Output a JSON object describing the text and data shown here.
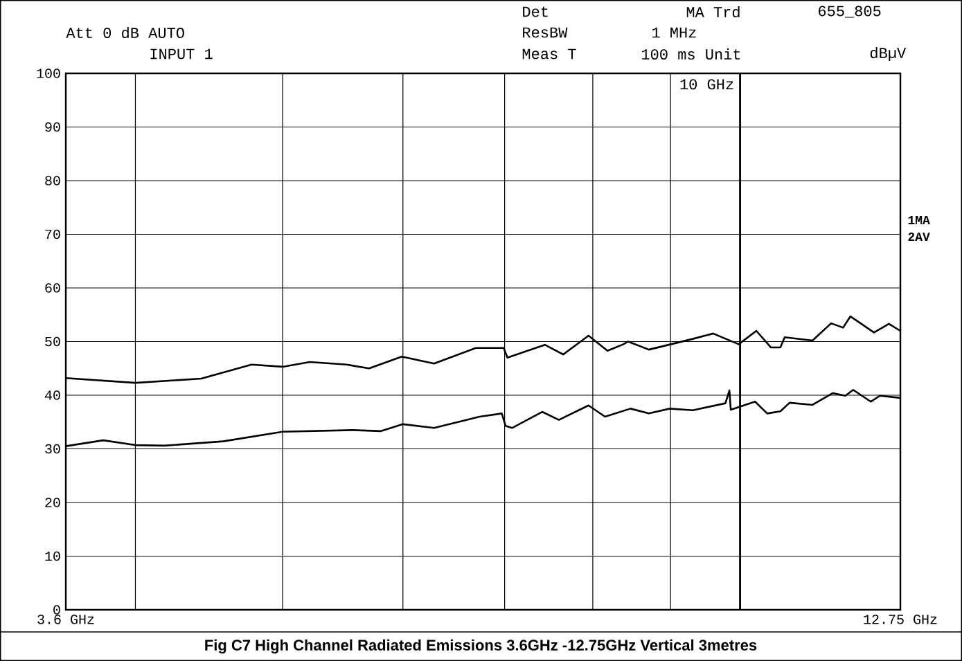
{
  "chart_data": {
    "type": "line",
    "title": "Fig C7 High Channel Radiated Emissions 3.6GHz -12.75GHz  Vertical 3metres",
    "annotations": [
      "Att 0 dB AUTO",
      "INPUT 1",
      "Det",
      "MA Trd",
      "655_805",
      "ResBW",
      "1 MHz",
      "Meas T",
      "100 ms Unit",
      "dBµV"
    ],
    "log": "x",
    "grid": true,
    "xlim": [
      3.6,
      12.75
    ],
    "ylim": [
      0,
      100
    ],
    "xticks": [
      {
        "value": 3.6,
        "label": "3.6 GHz"
      },
      {
        "value": 4,
        "label": null
      },
      {
        "value": 5,
        "label": null
      },
      {
        "value": 6,
        "label": null
      },
      {
        "value": 7,
        "label": null
      },
      {
        "value": 8,
        "label": null
      },
      {
        "value": 9,
        "label": null
      },
      {
        "value": 10,
        "label": null
      },
      {
        "value": 12.75,
        "label": "12.75 GHz"
      }
    ],
    "yticks": [
      0,
      10,
      20,
      30,
      40,
      50,
      60,
      70,
      80,
      90,
      100
    ],
    "ref_lines": [
      {
        "axis": "x",
        "value": 10,
        "label": "10 GHz",
        "color": "#000000"
      }
    ],
    "series": [
      {
        "name": "1MA",
        "color": "#000000",
        "x": [
          3.6,
          4.0,
          4.42,
          4.77,
          5.0,
          5.21,
          5.51,
          5.7,
          5.99,
          6.29,
          6.7,
          6.99,
          7.03,
          7.44,
          7.65,
          7.95,
          8.18,
          8.38,
          8.44,
          8.71,
          9.31,
          9.6,
          9.98,
          10.25,
          10.48,
          10.63,
          10.7,
          11.16,
          11.48,
          11.69,
          11.82,
          12.25,
          12.53,
          12.75
        ],
        "values": [
          43.2,
          42.3,
          43.1,
          45.7,
          45.3,
          46.2,
          45.7,
          45.0,
          47.2,
          45.9,
          48.8,
          48.8,
          47.0,
          49.4,
          47.6,
          51.1,
          48.3,
          49.5,
          50.0,
          48.5,
          50.5,
          51.5,
          49.5,
          52.0,
          48.9,
          48.9,
          50.8,
          50.2,
          53.4,
          52.6,
          54.7,
          51.7,
          53.3,
          52.0
        ]
      },
      {
        "name": "2AV",
        "color": "#000000",
        "x": [
          3.6,
          3.81,
          4.0,
          4.18,
          4.57,
          5.0,
          5.56,
          5.8,
          6.0,
          6.29,
          6.74,
          6.97,
          7.01,
          7.08,
          7.41,
          7.6,
          7.95,
          8.15,
          8.47,
          8.71,
          8.99,
          9.31,
          9.78,
          9.84,
          9.86,
          10.23,
          10.42,
          10.63,
          10.78,
          11.16,
          11.51,
          11.73,
          11.87,
          12.19,
          12.36,
          12.75
        ],
        "values": [
          30.5,
          31.6,
          30.7,
          30.6,
          31.4,
          33.2,
          33.5,
          33.3,
          34.6,
          33.9,
          36.0,
          36.6,
          34.3,
          33.9,
          36.9,
          35.4,
          38.1,
          36.0,
          37.5,
          36.6,
          37.5,
          37.2,
          38.5,
          40.9,
          37.3,
          38.8,
          36.6,
          37.0,
          38.6,
          38.2,
          40.4,
          39.9,
          41.0,
          38.8,
          39.9,
          39.5
        ]
      }
    ]
  }
}
